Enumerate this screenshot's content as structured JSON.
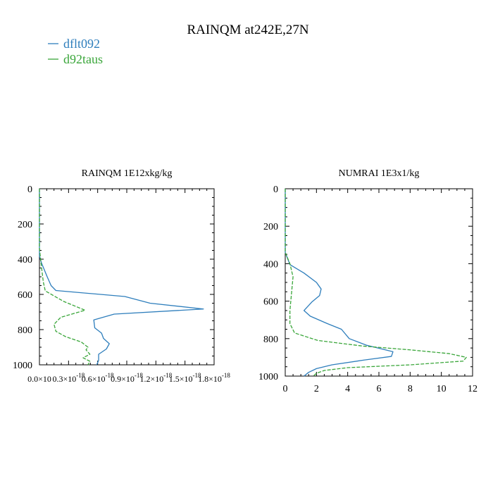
{
  "figure": {
    "title": "RAINQM at242E,27N",
    "legend": [
      {
        "name": "dflt092",
        "color": "#2e7ebc"
      },
      {
        "name": "d92taus",
        "color": "#3aa63a"
      }
    ]
  },
  "chart_data": [
    {
      "type": "line",
      "title": "RAINQM  1E12xkg/kg",
      "xlabel": "",
      "ylabel": "",
      "xlim": [
        0,
        1.8e-18
      ],
      "ylim": [
        1000,
        0
      ],
      "y_inverted": true,
      "grid": false,
      "x_ticks": [
        0,
        3e-19,
        6e-19,
        9e-19,
        1.2e-18,
        1.5e-18,
        1.8e-18
      ],
      "x_tick_labels": [
        "0.0×10",
        "0.3×10",
        "0.6×10",
        "0.9×10",
        "1.2×10",
        "1.5×10",
        "1.8×10"
      ],
      "x_tick_exponents": [
        "",
        "-18",
        "-18",
        "-18",
        "-18",
        "-18",
        "-18"
      ],
      "y_ticks": [
        0,
        200,
        400,
        600,
        800,
        1000
      ],
      "y_tick_labels": [
        "0",
        "200",
        "400",
        "600",
        "800",
        "1000"
      ],
      "series": [
        {
          "name": "dflt092",
          "color": "#2e7ebc",
          "dash": "solid",
          "points": [
            [
              0,
              0
            ],
            [
              0,
              380
            ],
            [
              2e-20,
              420
            ],
            [
              8e-20,
              500
            ],
            [
              1.2e-19,
              550
            ],
            [
              1.7e-19,
              578
            ],
            [
              8.8e-19,
              612
            ],
            [
              1.14e-18,
              650
            ],
            [
              1.69e-18,
              683
            ],
            [
              7.7e-19,
              712
            ],
            [
              5.6e-19,
              745
            ],
            [
              5.7e-19,
              790
            ],
            [
              6.4e-19,
              820
            ],
            [
              6.6e-19,
              850
            ],
            [
              7.2e-19,
              880
            ],
            [
              6.9e-19,
              910
            ],
            [
              6.1e-19,
              940
            ],
            [
              6.1e-19,
              975
            ],
            [
              5.9e-19,
              1000
            ]
          ]
        },
        {
          "name": "d92taus",
          "color": "#3aa63a",
          "dash": "dashed",
          "points": [
            [
              0,
              0
            ],
            [
              0,
              340
            ],
            [
              2e-20,
              440
            ],
            [
              4e-20,
              530
            ],
            [
              6e-20,
              580
            ],
            [
              2.5e-19,
              640
            ],
            [
              4.7e-19,
              690
            ],
            [
              2.2e-19,
              730
            ],
            [
              1.5e-19,
              770
            ],
            [
              1.7e-19,
              810
            ],
            [
              2.7e-19,
              840
            ],
            [
              4.3e-19,
              870
            ],
            [
              5e-19,
              900
            ],
            [
              4.8e-19,
              915
            ],
            [
              5.2e-19,
              940
            ],
            [
              4.5e-19,
              960
            ],
            [
              5.2e-19,
              980
            ],
            [
              5e-19,
              1000
            ]
          ]
        }
      ]
    },
    {
      "type": "line",
      "title": "NUMRAI  1E3x1/kg",
      "xlabel": "",
      "ylabel": "",
      "xlim": [
        0,
        12
      ],
      "ylim": [
        1000,
        0
      ],
      "y_inverted": true,
      "grid": false,
      "x_ticks": [
        0,
        2,
        4,
        6,
        8,
        10,
        12
      ],
      "x_tick_labels": [
        "0",
        "2",
        "4",
        "6",
        "8",
        "10",
        "12"
      ],
      "y_ticks": [
        0,
        200,
        400,
        600,
        800,
        1000
      ],
      "y_tick_labels": [
        "0",
        "200",
        "400",
        "600",
        "800",
        "1000"
      ],
      "series": [
        {
          "name": "dflt092",
          "color": "#2e7ebc",
          "dash": "solid",
          "points": [
            [
              0,
              0
            ],
            [
              0,
              340
            ],
            [
              0.3,
              405
            ],
            [
              1.2,
              450
            ],
            [
              2.0,
              500
            ],
            [
              2.3,
              535
            ],
            [
              2.2,
              570
            ],
            [
              1.7,
              605
            ],
            [
              1.2,
              650
            ],
            [
              1.6,
              680
            ],
            [
              2.7,
              720
            ],
            [
              3.6,
              750
            ],
            [
              4.1,
              800
            ],
            [
              5.2,
              835
            ],
            [
              6.9,
              870
            ],
            [
              6.8,
              895
            ],
            [
              5.0,
              915
            ],
            [
              3.0,
              940
            ],
            [
              2.0,
              960
            ],
            [
              1.5,
              980
            ],
            [
              1.2,
              1000
            ]
          ]
        },
        {
          "name": "d92taus",
          "color": "#3aa63a",
          "dash": "dashed",
          "points": [
            [
              0,
              0
            ],
            [
              0,
              340
            ],
            [
              0.3,
              400
            ],
            [
              0.5,
              470
            ],
            [
              0.4,
              560
            ],
            [
              0.3,
              650
            ],
            [
              0.3,
              720
            ],
            [
              0.6,
              770
            ],
            [
              2.1,
              810
            ],
            [
              5.0,
              840
            ],
            [
              8.0,
              860
            ],
            [
              10.5,
              880
            ],
            [
              11.6,
              900
            ],
            [
              11.4,
              920
            ],
            [
              8.0,
              940
            ],
            [
              4.0,
              955
            ],
            [
              2.5,
              970
            ],
            [
              2.0,
              985
            ],
            [
              1.8,
              1000
            ]
          ]
        }
      ]
    }
  ]
}
